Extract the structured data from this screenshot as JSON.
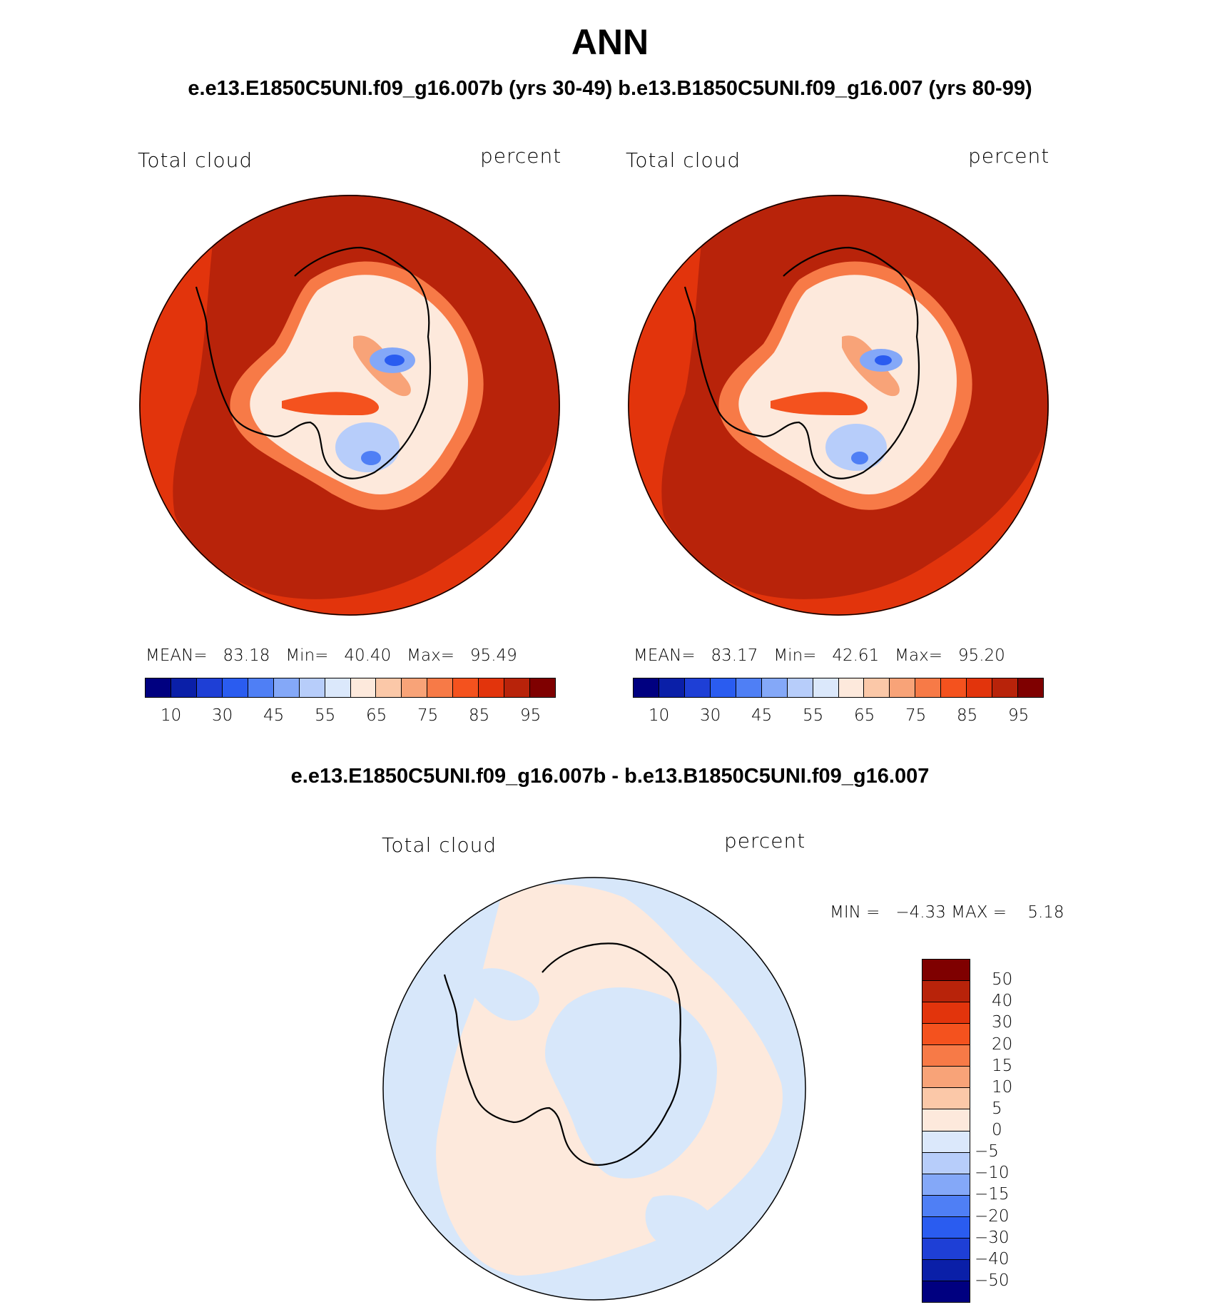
{
  "figure": {
    "main_title": "ANN",
    "top_subtitle": "e.e13.E1850C5UNI.f09_g16.007b (yrs 30-49)  b.e13.B1850C5UNI.f09_g16.007 (yrs 80-99)",
    "diff_title": "e.e13.E1850C5UNI.f09_g16.007b - b.e13.B1850C5UNI.f09_g16.007"
  },
  "panels": [
    {
      "field": "Total cloud",
      "units": "percent",
      "mean_label": "MEAN=",
      "mean": "83.18",
      "min_label": "Min=",
      "min": "40.40",
      "max_label": "Max=",
      "max": "95.49"
    },
    {
      "field": "Total cloud",
      "units": "percent",
      "mean_label": "MEAN=",
      "mean": "83.17",
      "min_label": "Min=",
      "min": "42.61",
      "max_label": "Max=",
      "max": "95.20"
    }
  ],
  "diff_panel": {
    "field": "Total cloud",
    "units": "percent",
    "min_label": "MIN =",
    "min": "−4.33",
    "max_label": "MAX =",
    "max": "5.18"
  },
  "colorbar": {
    "colors": [
      "#000080",
      "#0a1fa8",
      "#1e3fd6",
      "#2a5cf0",
      "#4f7ff5",
      "#84a8f8",
      "#b7cdfa",
      "#dbe8fb",
      "#fde9dc",
      "#fbc8a8",
      "#f8a378",
      "#f77a47",
      "#f4521e",
      "#e2340c",
      "#b8230a",
      "#7f0000"
    ],
    "ticks": [
      "10",
      "30",
      "45",
      "55",
      "65",
      "75",
      "85",
      "95"
    ]
  },
  "diff_colorbar": {
    "colors_top_to_bottom": [
      "#7f0000",
      "#b8230a",
      "#e2340c",
      "#f4521e",
      "#f77a47",
      "#f8a378",
      "#fbc8a8",
      "#fde9dc",
      "#dbe8fb",
      "#b7cdfa",
      "#84a8f8",
      "#4f7ff5",
      "#2a5cf0",
      "#1e3fd6",
      "#0a1fa8",
      "#000080"
    ],
    "ticks": [
      "50",
      "40",
      "30",
      "20",
      "15",
      "10",
      "5",
      "0",
      "−5",
      "−10",
      "−15",
      "−20",
      "−30",
      "−40",
      "−50"
    ]
  },
  "colors": {
    "ocean_dark_red": "#b8230a",
    "ocean_red": "#e2340c",
    "diff_blue": "#d7e7fa",
    "diff_peach": "#fde9dc"
  }
}
